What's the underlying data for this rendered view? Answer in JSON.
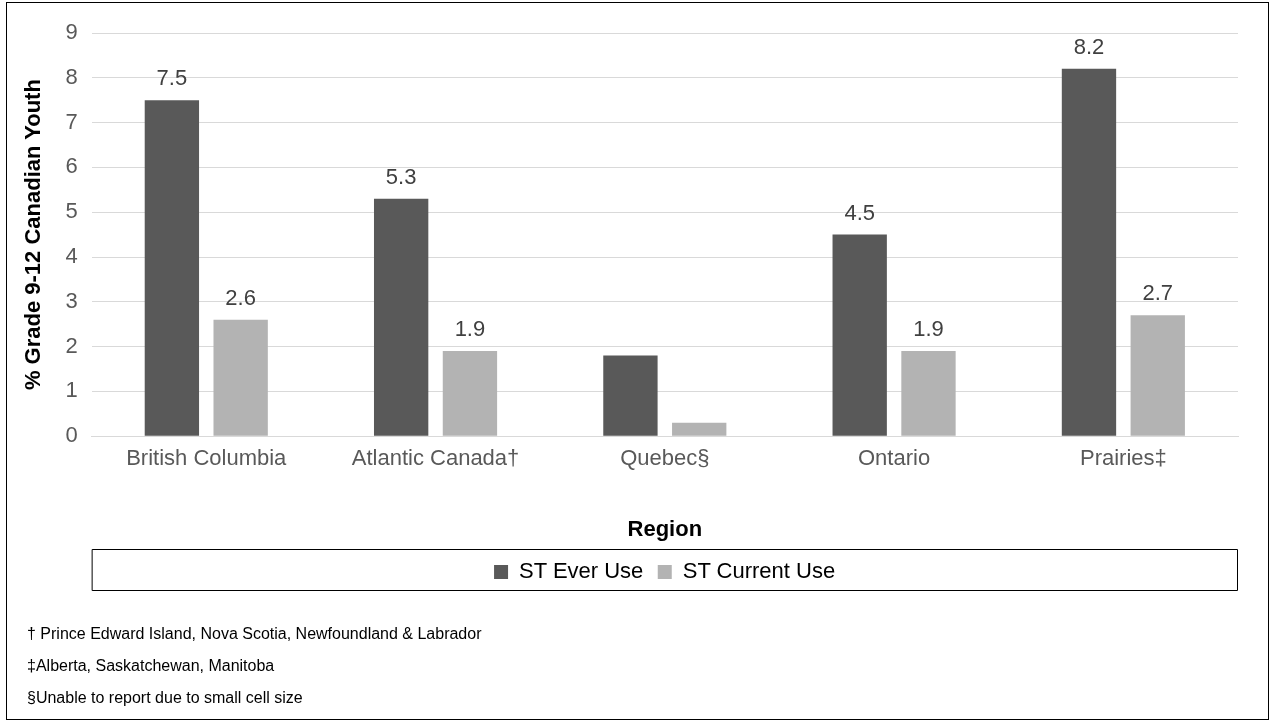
{
  "chart_data": {
    "type": "bar",
    "xlabel": "Region",
    "ylabel": "% Grade 9-12 Canadian Youth",
    "categories": [
      "British Columbia",
      "Atlantic Canada†",
      "Quebec§",
      "Ontario",
      "Prairies‡"
    ],
    "series": [
      {
        "name": "ST Ever Use",
        "color": "#595959",
        "values": [
          7.5,
          5.3,
          1.8,
          4.5,
          8.2
        ],
        "value_labels": [
          "7.5",
          "5.3",
          null,
          "4.5",
          "8.2"
        ]
      },
      {
        "name": "ST Current Use",
        "color": "#b3b3b3",
        "values": [
          2.6,
          1.9,
          0.3,
          1.9,
          2.7
        ],
        "value_labels": [
          "2.6",
          "1.9",
          null,
          "1.9",
          "2.7"
        ]
      }
    ],
    "ylim": [
      0,
      9
    ],
    "yticks": [
      0,
      1,
      2,
      3,
      4,
      5,
      6,
      7,
      8,
      9
    ],
    "grid": "y",
    "legend": "bottom",
    "annotations": [
      "† Prince Edward Island, Nova Scotia, Newfoundland & Labrador",
      "‡Alberta, Saskatchewan, Manitoba",
      "§Unable to report due to small cell size"
    ]
  }
}
